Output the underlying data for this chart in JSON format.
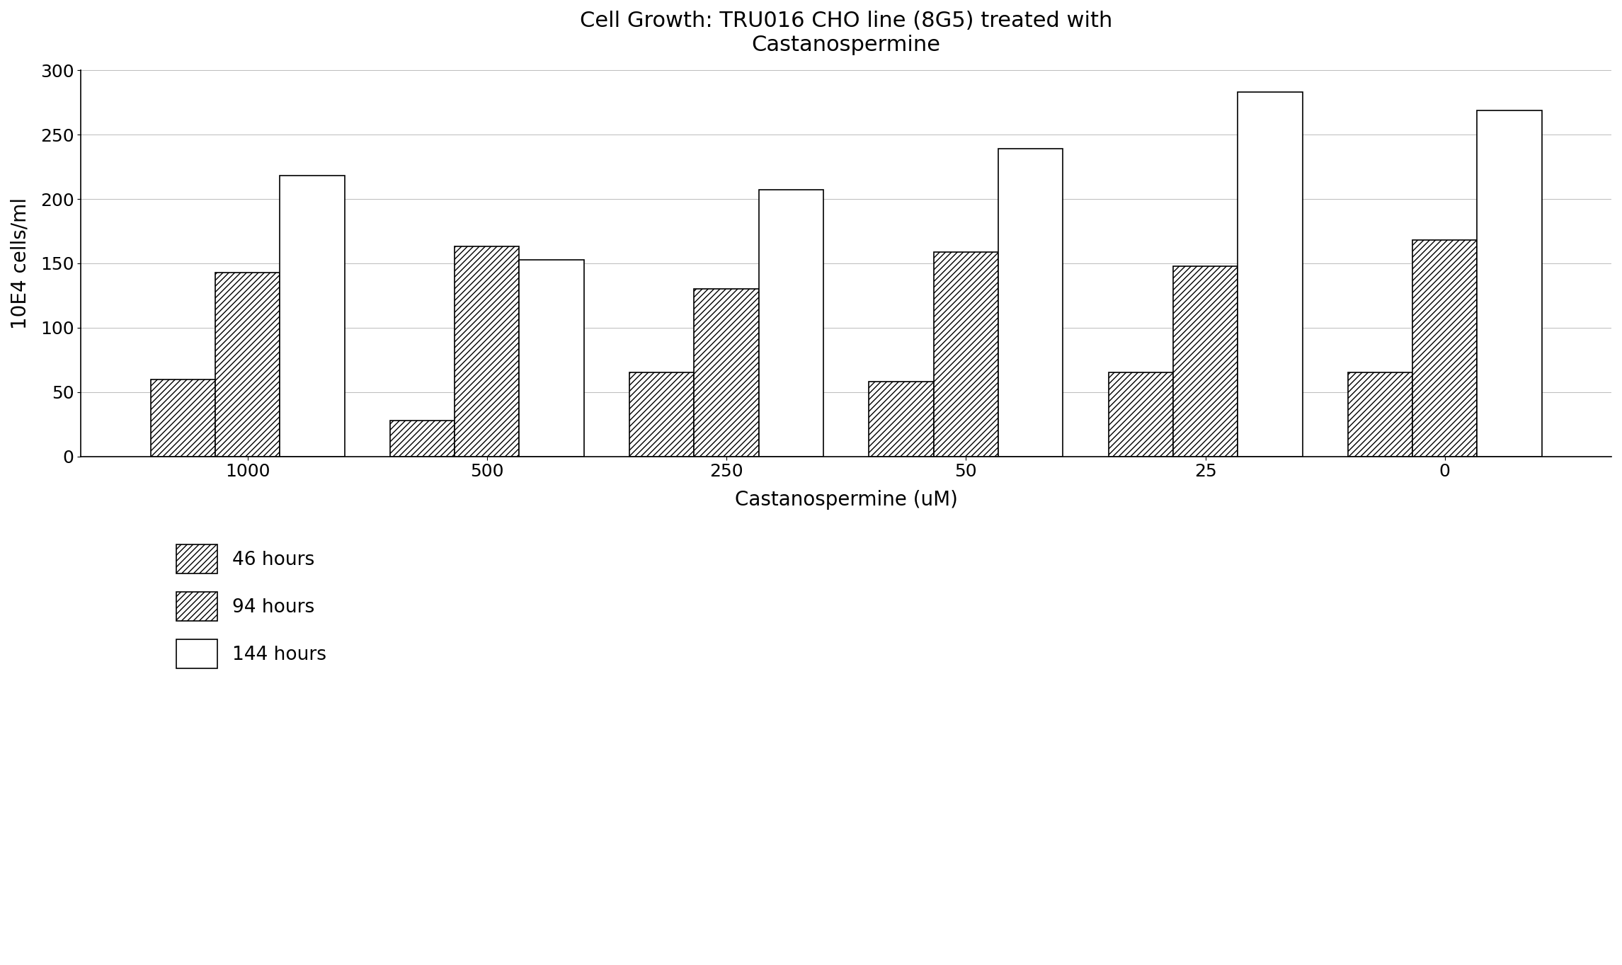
{
  "title": "Cell Growth: TRU016 CHO line (8G5) treated with\nCastanospermine",
  "xlabel": "Castanospermine (uM)",
  "ylabel": "10E4 cells/ml",
  "categories": [
    "1000",
    "500",
    "250",
    "50",
    "25",
    "0"
  ],
  "series": {
    "46 hours": [
      60,
      28,
      65,
      58,
      65,
      65
    ],
    "94 hours": [
      143,
      163,
      130,
      159,
      148,
      168
    ],
    "144 hours": [
      218,
      153,
      207,
      239,
      283,
      269
    ]
  },
  "ylim": [
    0,
    300
  ],
  "yticks": [
    0,
    50,
    100,
    150,
    200,
    250,
    300
  ],
  "bar_width": 0.27,
  "background_color": "#ffffff",
  "hatch_46": "////",
  "hatch_94": "////",
  "hatch_144": "",
  "color_46": "#ffffff",
  "color_94": "#ffffff",
  "color_144": "#ffffff",
  "edge_color": "#000000",
  "title_fontsize": 22,
  "axis_label_fontsize": 20,
  "tick_fontsize": 18,
  "legend_fontsize": 19
}
